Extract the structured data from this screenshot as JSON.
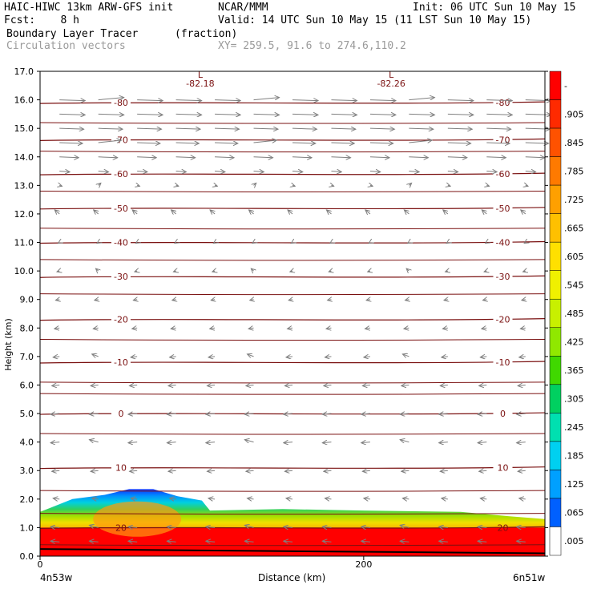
{
  "header": {
    "model_line": "HAIC-HIWC 13km ARW-GFS init",
    "org": "NCAR/MMM",
    "init": "Init: 06 UTC Sun 10 May 15",
    "fcst": "Fcst:    8 h",
    "valid": "Valid: 14 UTC Sun 10 May 15 (11 LST Sun 10 May 15)",
    "field1_name": "Boundary Layer Tracer",
    "field1_units": "(fraction)",
    "field2_name": "Circulation vectors",
    "xy_label": "XY= 259.5, 91.6 to 274.6,110.2"
  },
  "chart_data": {
    "type": "heatmap",
    "xlabel": "Distance (km)",
    "ylabel": "Height (km)",
    "xlim": [
      0,
      312
    ],
    "ylim": [
      0,
      17
    ],
    "x_ticks": [
      {
        "value": 0,
        "label": "0"
      },
      {
        "value": 200,
        "label": "200"
      }
    ],
    "x_end_labels": {
      "left": "4n53w",
      "right": "6n51w"
    },
    "y_ticks": [
      "0.0",
      "1.0",
      "2.0",
      "3.0",
      "4.0",
      "5.0",
      "6.0",
      "7.0",
      "8.0",
      "9.0",
      "10.0",
      "11.0",
      "12.0",
      "13.0",
      "14.0",
      "15.0",
      "16.0",
      "17.0"
    ],
    "colorbar": {
      "labels": [
        "-",
        ".905",
        ".845",
        ".785",
        ".725",
        ".665",
        ".605",
        ".545",
        ".485",
        ".425",
        ".365",
        ".305",
        ".245",
        ".185",
        ".125",
        ".065",
        ".005"
      ],
      "colors": [
        "#ff0000",
        "#ff2a00",
        "#ff5200",
        "#ff7a00",
        "#ffa000",
        "#ffc000",
        "#ffe000",
        "#f0f000",
        "#c8f000",
        "#90e800",
        "#40d800",
        "#00d060",
        "#00e0b0",
        "#00d0f0",
        "#00a0ff",
        "#0060ff",
        "#ffffff"
      ]
    },
    "isotherms": [
      {
        "label": "-80",
        "height": 15.9
      },
      {
        "label": "-70",
        "height": 14.6
      },
      {
        "label": "-60",
        "height": 13.4
      },
      {
        "label": "-50",
        "height": 12.2
      },
      {
        "label": "-40",
        "height": 11.0
      },
      {
        "label": "-30",
        "height": 9.8
      },
      {
        "label": "-20",
        "height": 8.3
      },
      {
        "label": "-10",
        "height": 6.8
      },
      {
        "label": "0",
        "height": 5.0
      },
      {
        "label": "10",
        "height": 3.1
      },
      {
        "label": "20",
        "height": 1.0
      }
    ],
    "extra_lines": [
      15.2,
      14.2,
      12.8,
      11.5,
      10.4,
      9.2,
      7.6,
      6.1,
      5.7,
      4.3,
      2.3,
      1.5,
      0.4
    ],
    "lows": [
      {
        "x": 99,
        "value": "-82.18"
      },
      {
        "x": 217,
        "value": "-82.26"
      }
    ],
    "tracer_top": [
      {
        "x": 0,
        "h": 1.55
      },
      {
        "x": 20,
        "h": 2.0
      },
      {
        "x": 40,
        "h": 2.15
      },
      {
        "x": 55,
        "h": 2.35
      },
      {
        "x": 70,
        "h": 2.35
      },
      {
        "x": 85,
        "h": 2.1
      },
      {
        "x": 100,
        "h": 1.95
      },
      {
        "x": 105,
        "h": 1.6
      },
      {
        "x": 150,
        "h": 1.65
      },
      {
        "x": 200,
        "h": 1.6
      },
      {
        "x": 260,
        "h": 1.55
      },
      {
        "x": 290,
        "h": 1.4
      },
      {
        "x": 312,
        "h": 1.3
      }
    ],
    "wind_levels": [
      {
        "h": 16.0,
        "u": 1.0
      },
      {
        "h": 15.5,
        "u": 1.0
      },
      {
        "h": 15.0,
        "u": 0.95
      },
      {
        "h": 14.5,
        "u": 0.9
      },
      {
        "h": 14.0,
        "u": 0.75
      },
      {
        "h": 13.5,
        "u": 0.4
      },
      {
        "h": 13.0,
        "u": 0.1
      },
      {
        "h": 12.0,
        "u": 0.0
      },
      {
        "h": 11.0,
        "u": -0.05
      },
      {
        "h": 10.0,
        "u": -0.1
      },
      {
        "h": 9.0,
        "u": -0.15
      },
      {
        "h": 8.0,
        "u": -0.2
      },
      {
        "h": 7.0,
        "u": -0.25
      },
      {
        "h": 6.0,
        "u": -0.3
      },
      {
        "h": 5.0,
        "u": -0.35
      },
      {
        "h": 4.0,
        "u": -0.35
      },
      {
        "h": 3.0,
        "u": -0.3
      },
      {
        "h": 2.0,
        "u": -0.25
      },
      {
        "h": 1.0,
        "u": -0.35
      },
      {
        "h": 0.5,
        "u": -0.35
      }
    ]
  }
}
